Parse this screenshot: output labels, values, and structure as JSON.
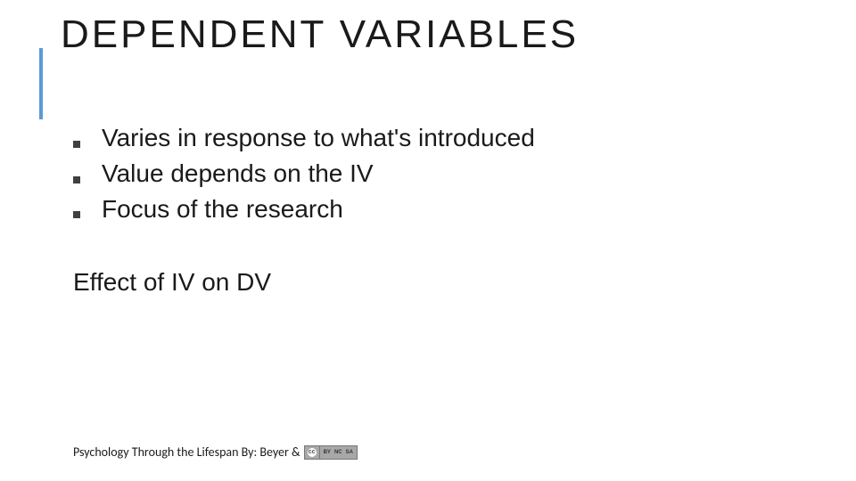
{
  "slide": {
    "title": "DEPENDENT VARIABLES",
    "accent_color": "#5b9bd5",
    "bullets": [
      "Varies in response to what's introduced",
      "Value depends on the IV",
      "Focus of the research"
    ],
    "effect_line": "Effect of IV on DV",
    "footer_text": "Psychology Through the Lifespan By: Beyer & ",
    "cc": {
      "left_label": "cc",
      "right_labels": [
        "BY",
        "NC",
        "SA"
      ]
    }
  }
}
